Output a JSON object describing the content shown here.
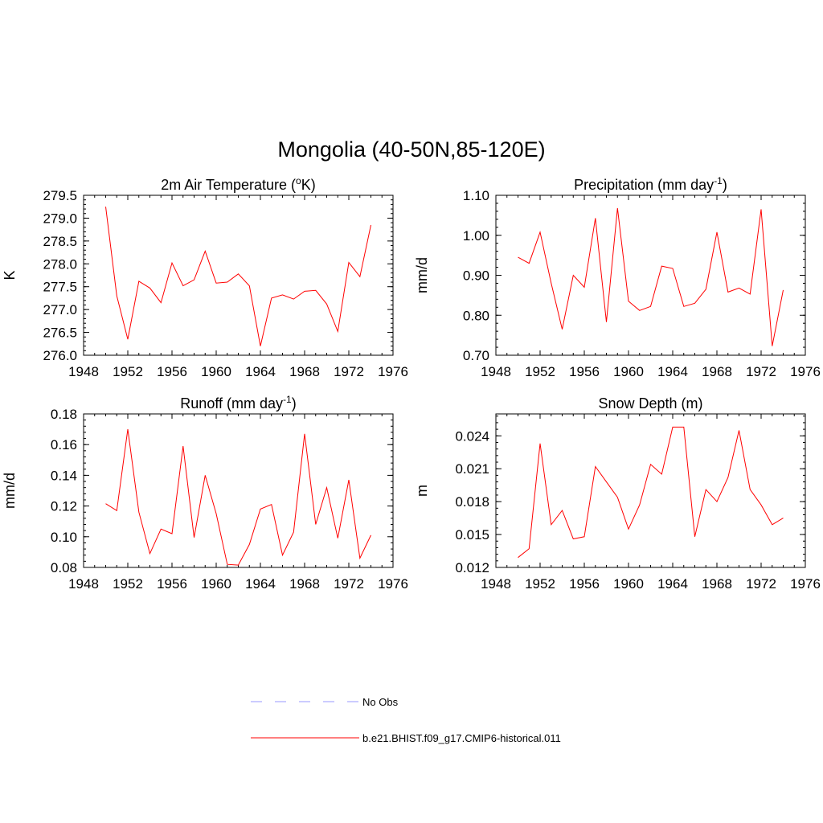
{
  "title": "Mongolia (40-50N,85-120E)",
  "colors": {
    "model": "#ff0000",
    "obs": "#9999ff"
  },
  "legend": [
    {
      "label": "No Obs",
      "style": "dashed",
      "color": "#9999ff"
    },
    {
      "label": "b.e21.BHIST.f09_g17.CMIP6-historical.011",
      "style": "solid",
      "color": "#ff0000"
    }
  ],
  "chart_data": [
    {
      "type": "line",
      "title": "2m Air Temperature (",
      "title_parts": [
        "2m Air Temperature (",
        "o",
        "K)"
      ],
      "ylabel": "K",
      "xlim": [
        1948,
        1976
      ],
      "ylim": [
        276.0,
        279.5
      ],
      "xticks": [
        1948,
        1952,
        1956,
        1960,
        1964,
        1968,
        1972,
        1976
      ],
      "yticks": [
        "276.0",
        "276.5",
        "277.0",
        "277.5",
        "278.0",
        "278.5",
        "279.0",
        "279.5"
      ],
      "x": [
        1950,
        1951,
        1952,
        1953,
        1954,
        1955,
        1956,
        1957,
        1958,
        1959,
        1960,
        1961,
        1962,
        1963,
        1964,
        1965,
        1966,
        1967,
        1968,
        1969,
        1970,
        1971,
        1972,
        1973,
        1974
      ],
      "series": [
        {
          "name": "b.e21.BHIST.f09_g17.CMIP6-historical.011",
          "values": [
            279.25,
            277.3,
            276.35,
            277.62,
            277.47,
            277.15,
            278.02,
            277.52,
            277.65,
            278.28,
            277.58,
            277.6,
            277.78,
            277.52,
            276.2,
            277.25,
            277.32,
            277.23,
            277.4,
            277.42,
            277.12,
            276.52,
            278.03,
            277.72,
            278.85
          ]
        }
      ]
    },
    {
      "type": "line",
      "title": "Precipitation (mm day",
      "title_parts": [
        "Precipitation (mm day",
        "-1",
        ")"
      ],
      "ylabel": "mm/d",
      "xlim": [
        1948,
        1976
      ],
      "ylim": [
        0.7,
        1.1
      ],
      "xticks": [
        1948,
        1952,
        1956,
        1960,
        1964,
        1968,
        1972,
        1976
      ],
      "yticks": [
        "0.70",
        "0.80",
        "0.90",
        "1.00",
        "1.10"
      ],
      "x": [
        1950,
        1951,
        1952,
        1953,
        1954,
        1955,
        1956,
        1957,
        1958,
        1959,
        1960,
        1961,
        1962,
        1963,
        1964,
        1965,
        1966,
        1967,
        1968,
        1969,
        1970,
        1971,
        1972,
        1973,
        1974
      ],
      "series": [
        {
          "name": "b.e21.BHIST.f09_g17.CMIP6-historical.011",
          "values": [
            0.945,
            0.93,
            1.008,
            0.88,
            0.765,
            0.9,
            0.87,
            1.043,
            0.783,
            1.068,
            0.835,
            0.812,
            0.822,
            0.923,
            0.917,
            0.822,
            0.83,
            0.865,
            1.008,
            0.858,
            0.868,
            0.853,
            1.065,
            0.723,
            0.863
          ]
        }
      ]
    },
    {
      "type": "line",
      "title": "Runoff (mm day",
      "title_parts": [
        "Runoff (mm day",
        "-1",
        ")"
      ],
      "ylabel": "mm/d",
      "xlim": [
        1948,
        1976
      ],
      "ylim": [
        0.08,
        0.18
      ],
      "xticks": [
        1948,
        1952,
        1956,
        1960,
        1964,
        1968,
        1972,
        1976
      ],
      "yticks": [
        "0.08",
        "0.10",
        "0.12",
        "0.14",
        "0.16",
        "0.18"
      ],
      "x": [
        1950,
        1951,
        1952,
        1953,
        1954,
        1955,
        1956,
        1957,
        1958,
        1959,
        1960,
        1961,
        1962,
        1963,
        1964,
        1965,
        1966,
        1967,
        1968,
        1969,
        1970,
        1971,
        1972,
        1973,
        1974
      ],
      "series": [
        {
          "name": "b.e21.BHIST.f09_g17.CMIP6-historical.011",
          "values": [
            0.1215,
            0.117,
            0.17,
            0.116,
            0.089,
            0.105,
            0.102,
            0.159,
            0.0995,
            0.14,
            0.115,
            0.082,
            0.0815,
            0.095,
            0.118,
            0.121,
            0.088,
            0.103,
            0.167,
            0.108,
            0.132,
            0.099,
            0.137,
            0.086,
            0.101
          ]
        }
      ]
    },
    {
      "type": "line",
      "title": "Snow Depth (m)",
      "title_parts": [
        "Snow Depth (m)",
        "",
        ""
      ],
      "ylabel": "m",
      "xlim": [
        1948,
        1976
      ],
      "ylim": [
        0.012,
        0.026
      ],
      "xticks": [
        1948,
        1952,
        1956,
        1960,
        1964,
        1968,
        1972,
        1976
      ],
      "yticks": [
        "0.012",
        "0.015",
        "0.018",
        "0.021",
        "0.024"
      ],
      "ytick_values": [
        0.012,
        0.015,
        0.018,
        0.021,
        0.024
      ],
      "x": [
        1950,
        1951,
        1952,
        1953,
        1954,
        1955,
        1956,
        1957,
        1958,
        1959,
        1960,
        1961,
        1962,
        1963,
        1964,
        1965,
        1966,
        1967,
        1968,
        1969,
        1970,
        1971,
        1972,
        1973,
        1974
      ],
      "series": [
        {
          "name": "b.e21.BHIST.f09_g17.CMIP6-historical.011",
          "values": [
            0.0129,
            0.0137,
            0.0233,
            0.0159,
            0.0172,
            0.0146,
            0.0148,
            0.0212,
            0.0198,
            0.0184,
            0.0155,
            0.0177,
            0.0214,
            0.0205,
            0.0248,
            0.0248,
            0.0148,
            0.0191,
            0.018,
            0.0202,
            0.0245,
            0.0191,
            0.0177,
            0.0159,
            0.0165
          ]
        }
      ]
    }
  ]
}
